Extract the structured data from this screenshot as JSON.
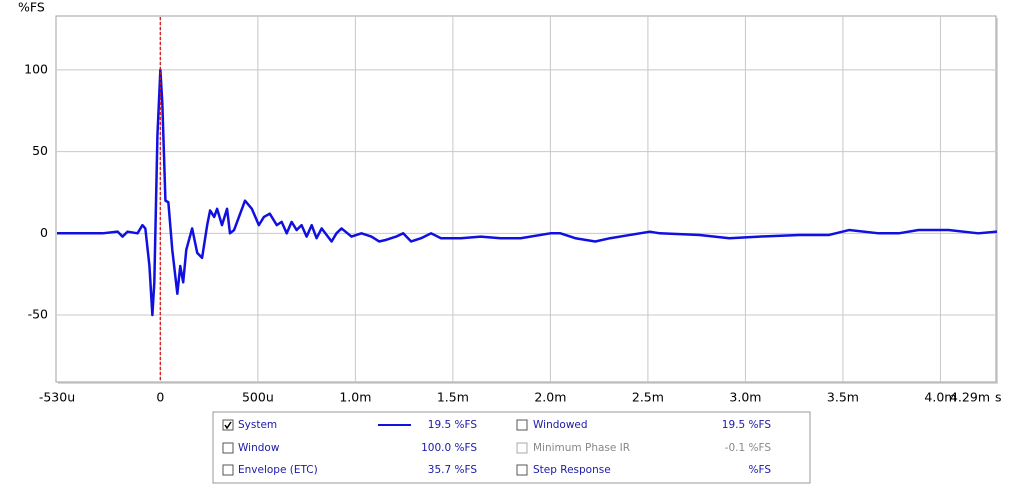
{
  "chart_data": {
    "type": "line",
    "ylabel": "%FS",
    "xlabel": "s",
    "xlim": [
      -0.00053,
      0.00429
    ],
    "ylim": [
      -91,
      133
    ],
    "xticks": [
      {
        "value": -0.00053,
        "label": "-530u"
      },
      0,
      {
        "value": 0.0005,
        "label": "500u"
      },
      {
        "value": 0.001,
        "label": "1.0m"
      },
      {
        "value": 0.0015,
        "label": "1.5m"
      },
      {
        "value": 0.002,
        "label": "2.0m"
      },
      {
        "value": 0.0025,
        "label": "2.5m"
      },
      {
        "value": 0.003,
        "label": "3.0m"
      },
      {
        "value": 0.0035,
        "label": "3.5m"
      },
      {
        "value": 0.004,
        "label": "4.0m"
      },
      {
        "value": 0.00429,
        "label": "4.29m"
      }
    ],
    "yticks": [
      100,
      50,
      0,
      -50
    ],
    "grid": true,
    "marker_x": 0,
    "marker_color": "#e02020",
    "x": [
      -0.00053,
      -0.000296,
      -0.000219,
      -0.000194,
      -0.000168,
      -0.000117,
      -9.2e-05,
      -7.7e-05,
      -5.6e-05,
      -4.1e-05,
      -3.1e-05,
      -1.5e-05,
      0,
      1e-05,
      2.6e-05,
      4.1e-05,
      6.1e-05,
      8.7e-05,
      0.000102,
      0.000117,
      0.000133,
      0.000163,
      0.000189,
      0.000214,
      0.00024,
      0.000255,
      0.000276,
      0.000291,
      0.000316,
      0.000342,
      0.000357,
      0.000378,
      0.000403,
      0.000434,
      0.000469,
      0.000505,
      0.000531,
      0.000561,
      0.000597,
      0.000622,
      0.000648,
      0.000673,
      0.000699,
      0.000724,
      0.00075,
      0.000776,
      0.000801,
      0.000827,
      0.000878,
      0.000903,
      0.000929,
      0.00098,
      0.001031,
      0.001082,
      0.001122,
      0.001158,
      0.001209,
      0.001245,
      0.001286,
      0.001337,
      0.001388,
      0.001439,
      0.001541,
      0.001643,
      0.001745,
      0.001847,
      0.002,
      0.002051,
      0.002128,
      0.00223,
      0.002306,
      0.002408,
      0.00251,
      0.002561,
      0.002765,
      0.002918,
      0.003071,
      0.003276,
      0.003429,
      0.003531,
      0.003684,
      0.003786,
      0.003888,
      0.004041,
      0.004194,
      0.00429
    ],
    "series": [
      {
        "name": "System",
        "color": "#1010e0",
        "checked": true,
        "readout": "19.5 %FS",
        "values": [
          0,
          0,
          1,
          -2,
          1,
          0,
          5,
          3,
          -20,
          -50,
          -30,
          60,
          100,
          80,
          20,
          19,
          -10,
          -37,
          -20,
          -30,
          -10,
          3,
          -12,
          -15,
          5,
          14,
          10,
          15,
          5,
          15,
          0,
          2,
          10,
          20,
          15,
          5,
          10,
          12,
          5,
          7,
          0,
          7,
          2,
          5,
          -2,
          5,
          -3,
          3,
          -5,
          0,
          3,
          -2,
          0,
          -2,
          -5,
          -4,
          -2,
          0,
          -5,
          -3,
          0,
          -3,
          -3,
          -2,
          -3,
          -3,
          0,
          0,
          -3,
          -5,
          -3,
          -1,
          1,
          0,
          -1,
          -3,
          -2,
          -1,
          -1,
          2,
          0,
          0,
          2,
          2,
          0,
          1
        ]
      }
    ],
    "legend_items": [
      {
        "name": "Window",
        "checked": false,
        "enabled": true,
        "readout": "100.0 %FS"
      },
      {
        "name": "Envelope (ETC)",
        "checked": false,
        "enabled": true,
        "readout": "35.7 %FS"
      },
      {
        "name": "Windowed",
        "checked": false,
        "enabled": true,
        "readout": "19.5 %FS"
      },
      {
        "name": "Minimum Phase IR",
        "checked": false,
        "enabled": false,
        "readout": "-0.1 %FS"
      },
      {
        "name": "Step Response",
        "checked": false,
        "enabled": true,
        "readout": "%FS"
      }
    ]
  }
}
